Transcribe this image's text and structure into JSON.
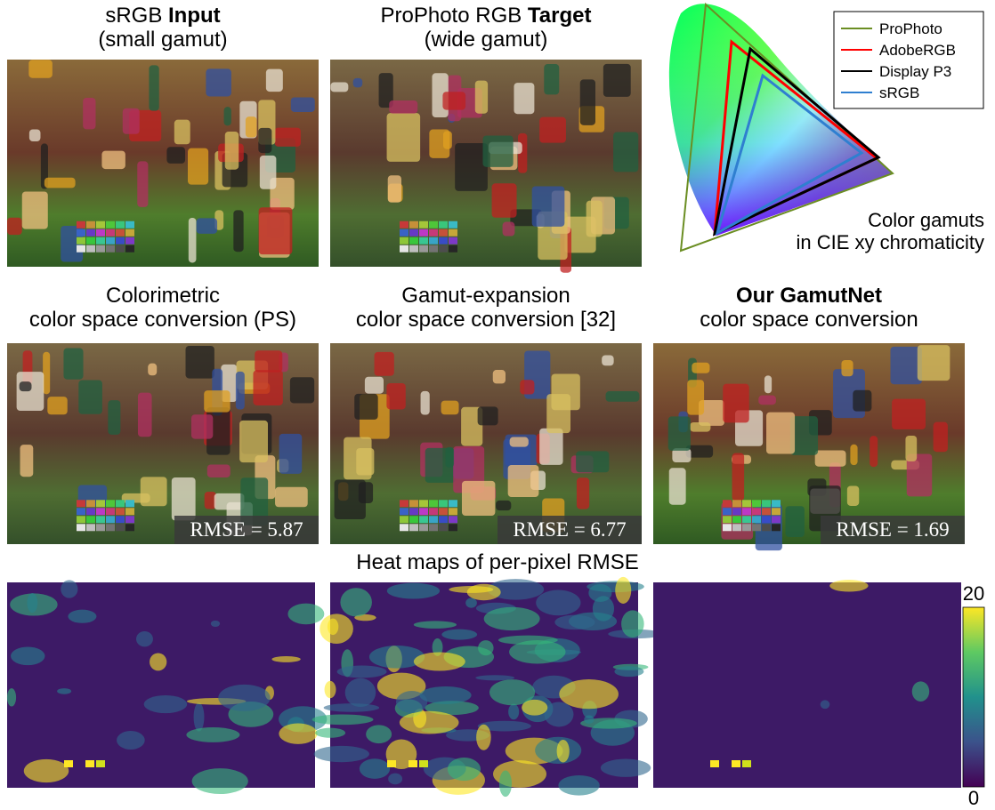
{
  "panels": [
    {
      "lines": [
        [
          {
            "text": "sRGB ",
            "bold": false
          },
          {
            "text": "Input",
            "bold": true
          }
        ],
        [
          {
            "text": "(small gamut)",
            "bold": false
          }
        ]
      ]
    },
    {
      "lines": [
        [
          {
            "text": "ProPhoto RGB ",
            "bold": false
          },
          {
            "text": "Target",
            "bold": true
          }
        ],
        [
          {
            "text": "(wide gamut)",
            "bold": false
          }
        ]
      ]
    },
    {
      "lines": [
        [
          {
            "text": "Colorimetric",
            "bold": false
          }
        ],
        [
          {
            "text": "color space conversion (PS)",
            "bold": false
          }
        ]
      ],
      "metric": "RMSE = 5.87"
    },
    {
      "lines": [
        [
          {
            "text": "Gamut-expansion",
            "bold": false
          }
        ],
        [
          {
            "text": "color space conversion [32]",
            "bold": false
          }
        ]
      ],
      "metric": "RMSE = 6.77"
    },
    {
      "lines": [
        [
          {
            "text": "Our GamutNet",
            "bold": true
          }
        ],
        [
          {
            "text": "color space conversion",
            "bold": false
          }
        ]
      ],
      "metric": "RMSE = 1.69"
    }
  ],
  "gamut": {
    "legend": [
      {
        "name": "ProPhoto",
        "color": "#6b8e23"
      },
      {
        "name": "AdobeRGB",
        "color": "#ff0000"
      },
      {
        "name": "Display P3",
        "color": "#000000"
      },
      {
        "name": "sRGB",
        "color": "#2f7fd0"
      }
    ],
    "caption": [
      "Color gamuts",
      "in CIE xy chromaticity"
    ]
  },
  "heatmap": {
    "title": "Heat maps of per-pixel RMSE",
    "colorbar": {
      "max_label": "20",
      "min_label": "0"
    }
  }
}
